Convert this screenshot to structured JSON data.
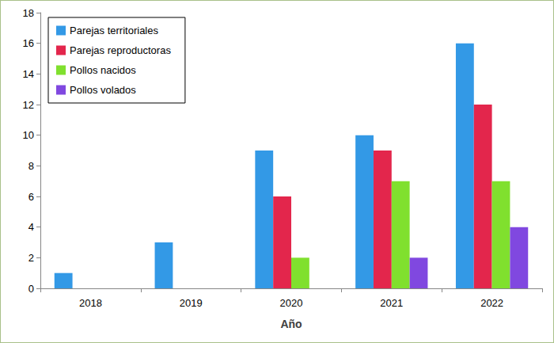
{
  "chart_data": {
    "type": "bar",
    "x_label": "Año",
    "categories": [
      "2018",
      "2019",
      "2020",
      "2021",
      "2022"
    ],
    "series": [
      {
        "name": "Parejas territoriales",
        "color": "#3399e6",
        "values": [
          1,
          3,
          9,
          10,
          16
        ]
      },
      {
        "name": "Parejas reproductoras",
        "color": "#e3264c",
        "values": [
          0,
          0,
          6,
          9,
          12
        ]
      },
      {
        "name": "Pollos nacidos",
        "color": "#80e02e",
        "values": [
          0,
          0,
          2,
          7,
          7
        ]
      },
      {
        "name": "Pollos volados",
        "color": "#8048e0",
        "values": [
          0,
          0,
          0,
          2,
          4
        ]
      }
    ],
    "ylim": [
      0,
      18
    ],
    "yticks": [
      0,
      2,
      4,
      6,
      8,
      10,
      12,
      14,
      16,
      18
    ],
    "grid": false,
    "legend": "upper left"
  }
}
